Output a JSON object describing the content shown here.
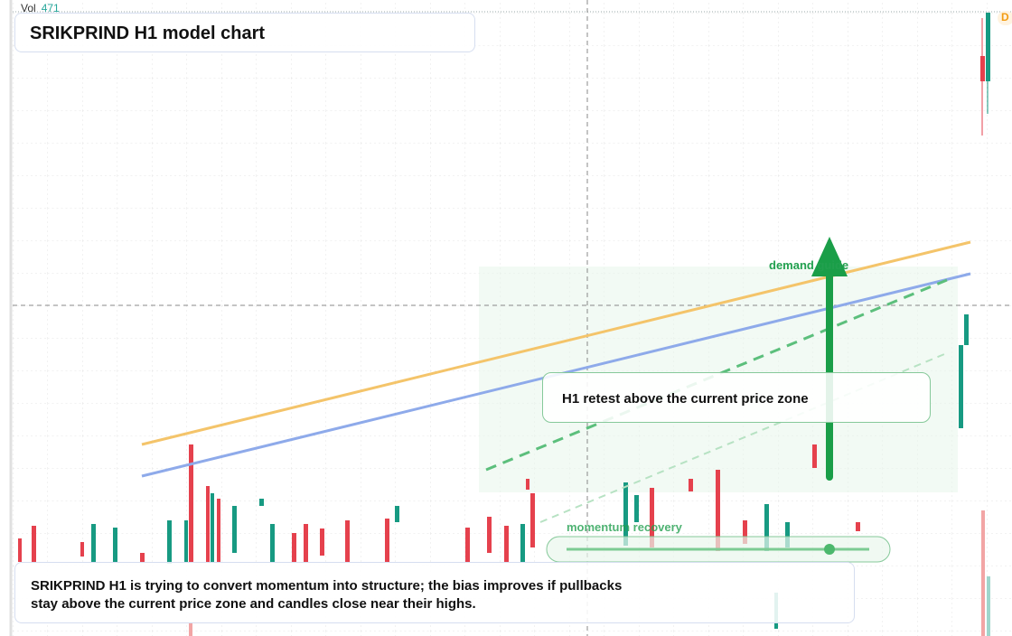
{
  "header": {
    "title": "SRIKPRIND H1 model chart",
    "volume_label": "Vol",
    "volume_value": "471",
    "badge": "D"
  },
  "annotations": {
    "demand": "demand guide",
    "retest": "H1 retest above the current price zone",
    "momentum": "momentum recovery"
  },
  "description": "SRIKPRIND H1 is trying to convert momentum into structure; the bias improves if pullbacks stay above the current price zone and candles close near their highs."
}
